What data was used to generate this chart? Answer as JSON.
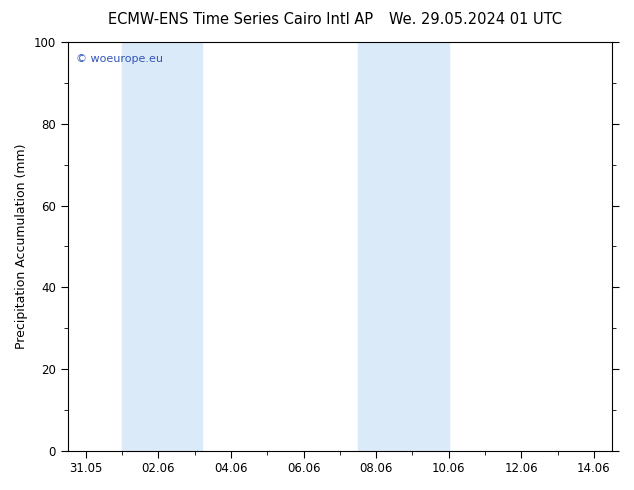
{
  "title_left": "ECMW-ENS Time Series Cairo Intl AP",
  "title_right": "We. 29.05.2024 01 UTC",
  "ylabel": "Precipitation Accumulation (mm)",
  "xlabel": "",
  "ylim": [
    0,
    100
  ],
  "yticks": [
    0,
    20,
    40,
    60,
    80,
    100
  ],
  "xtick_labels": [
    "31.05",
    "02.06",
    "04.06",
    "06.06",
    "08.06",
    "10.06",
    "12.06",
    "14.06"
  ],
  "xtick_positions": [
    0,
    2,
    4,
    6,
    8,
    10,
    12,
    14
  ],
  "xlim": [
    -0.5,
    14.5
  ],
  "background_color": "#ffffff",
  "plot_bg_color": "#ffffff",
  "shaded_bands": [
    {
      "x_start": 1.0,
      "x_end": 3.2
    },
    {
      "x_start": 7.5,
      "x_end": 10.0
    }
  ],
  "shade_color": "#daeaf8",
  "watermark_text": "© woeurope.eu",
  "watermark_color": "#3355bb",
  "title_fontsize": 10.5,
  "tick_fontsize": 8.5,
  "ylabel_fontsize": 9
}
